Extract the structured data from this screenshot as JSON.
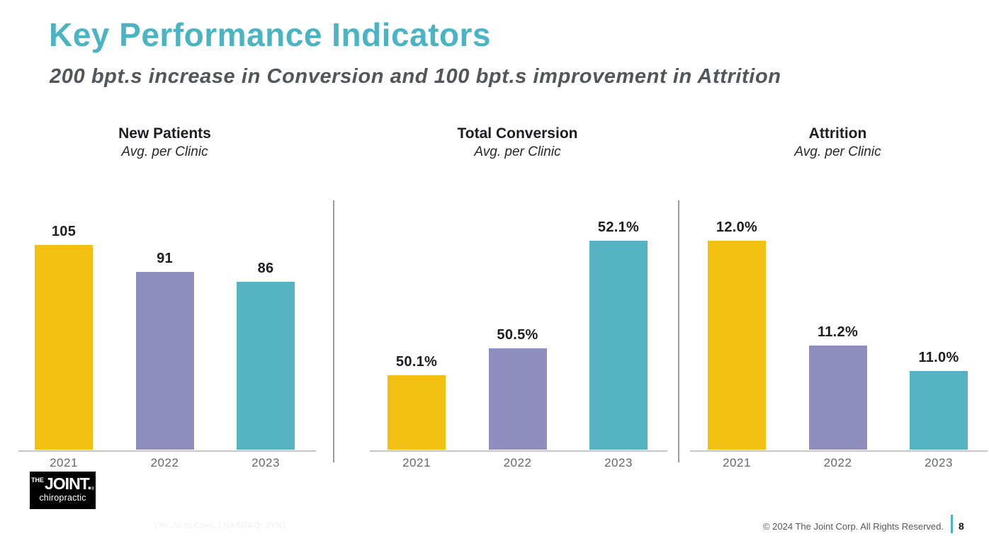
{
  "page": {
    "title": "Key Performance Indicators",
    "subtitle": "200 bpt.s increase in Conversion and 100 bpt.s improvement in Attrition"
  },
  "colors": {
    "accent_teal": "#4BB4C3",
    "subtitle_gray": "#54555A",
    "bar_colors": [
      "#F2C012",
      "#8F8EBE",
      "#55B2C0"
    ]
  },
  "chart_data": [
    {
      "type": "bar",
      "title": "New Patients",
      "subtitle": "Avg. per Clinic",
      "categories": [
        "2021",
        "2022",
        "2023"
      ],
      "values": [
        105,
        91,
        86
      ],
      "labels": [
        "105",
        "91",
        "86"
      ],
      "ylim": [
        0,
        107
      ],
      "grid": false,
      "legend": false
    },
    {
      "type": "bar",
      "title": "Total Conversion",
      "subtitle": "Avg. per Clinic",
      "categories": [
        "2021",
        "2022",
        "2023"
      ],
      "values": [
        50.1,
        50.5,
        52.1
      ],
      "labels": [
        "50.1%",
        "50.5%",
        "52.1%"
      ],
      "ylim": [
        49.0,
        52.1
      ],
      "unit": "%",
      "grid": false,
      "legend": false
    },
    {
      "type": "bar",
      "title": "Attrition",
      "subtitle": "Avg. per Clinic",
      "categories": [
        "2021",
        "2022",
        "2023"
      ],
      "values": [
        12.0,
        11.2,
        11.0
      ],
      "labels": [
        "12.0%",
        "11.2%",
        "11.0%"
      ],
      "ylim": [
        10.4,
        12.0
      ],
      "unit": "%",
      "grid": false,
      "legend": false
    }
  ],
  "logo": {
    "the": "THE",
    "joint": "JOINT.",
    "reg": "®",
    "tagline": "chiropractic"
  },
  "footer": {
    "watermark": "The Joint Corp. | NASDAQ: JYNT",
    "copyright": "© 2024 The Joint Corp. All Rights Reserved.",
    "page_number": "8"
  }
}
